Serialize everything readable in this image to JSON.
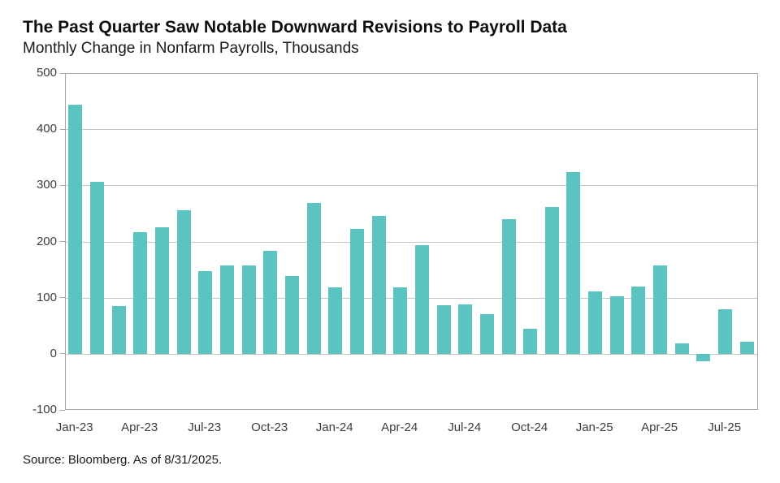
{
  "header": {
    "title": "The Past Quarter Saw Notable Downward Revisions to Payroll Data",
    "subtitle": "Monthly Change in Nonfarm Payrolls, Thousands"
  },
  "footer": {
    "source": "Source: Bloomberg. As of 8/31/2025."
  },
  "colors": {
    "bar": "#5CC4C0",
    "gridline": "#c6c6c6",
    "axis_border": "#a6a6a6",
    "title_text": "#0f0f0f",
    "tick_text": "#3d3d3d"
  },
  "chart_data": {
    "type": "bar",
    "title": "The Past Quarter Saw Notable Downward Revisions to Payroll Data",
    "subtitle": "Monthly Change in Nonfarm Payrolls, Thousands",
    "xlabel": "",
    "ylabel": "Monthly Change in Nonfarm Payrolls, Thousands",
    "categories": [
      "Jan-23",
      "Feb-23",
      "Mar-23",
      "Apr-23",
      "May-23",
      "Jun-23",
      "Jul-23",
      "Aug-23",
      "Sep-23",
      "Oct-23",
      "Nov-23",
      "Dec-23",
      "Jan-24",
      "Feb-24",
      "Mar-24",
      "Apr-24",
      "May-24",
      "Jun-24",
      "Jul-24",
      "Aug-24",
      "Sep-24",
      "Oct-24",
      "Nov-24",
      "Dec-24",
      "Jan-25",
      "Feb-25",
      "Mar-25",
      "Apr-25",
      "May-25",
      "Jun-25",
      "Jul-25",
      "Aug-25"
    ],
    "values": [
      444,
      306,
      85,
      216,
      226,
      255,
      147,
      157,
      157,
      184,
      138,
      269,
      119,
      222,
      246,
      118,
      193,
      87,
      88,
      71,
      240,
      44,
      261,
      323,
      111,
      102,
      120,
      158,
      19,
      -13,
      79,
      22
    ],
    "x_tick_labels": [
      "Jan-23",
      "Apr-23",
      "Jul-23",
      "Oct-23",
      "Jan-24",
      "Apr-24",
      "Jul-24",
      "Oct-24",
      "Jan-25",
      "Apr-25",
      "Jul-25"
    ],
    "x_tick_interval": 3,
    "y_ticks": [
      500,
      400,
      300,
      200,
      100,
      0,
      -100
    ],
    "ylim": [
      -100,
      500
    ],
    "grid": "horizontal",
    "legend": "none"
  }
}
